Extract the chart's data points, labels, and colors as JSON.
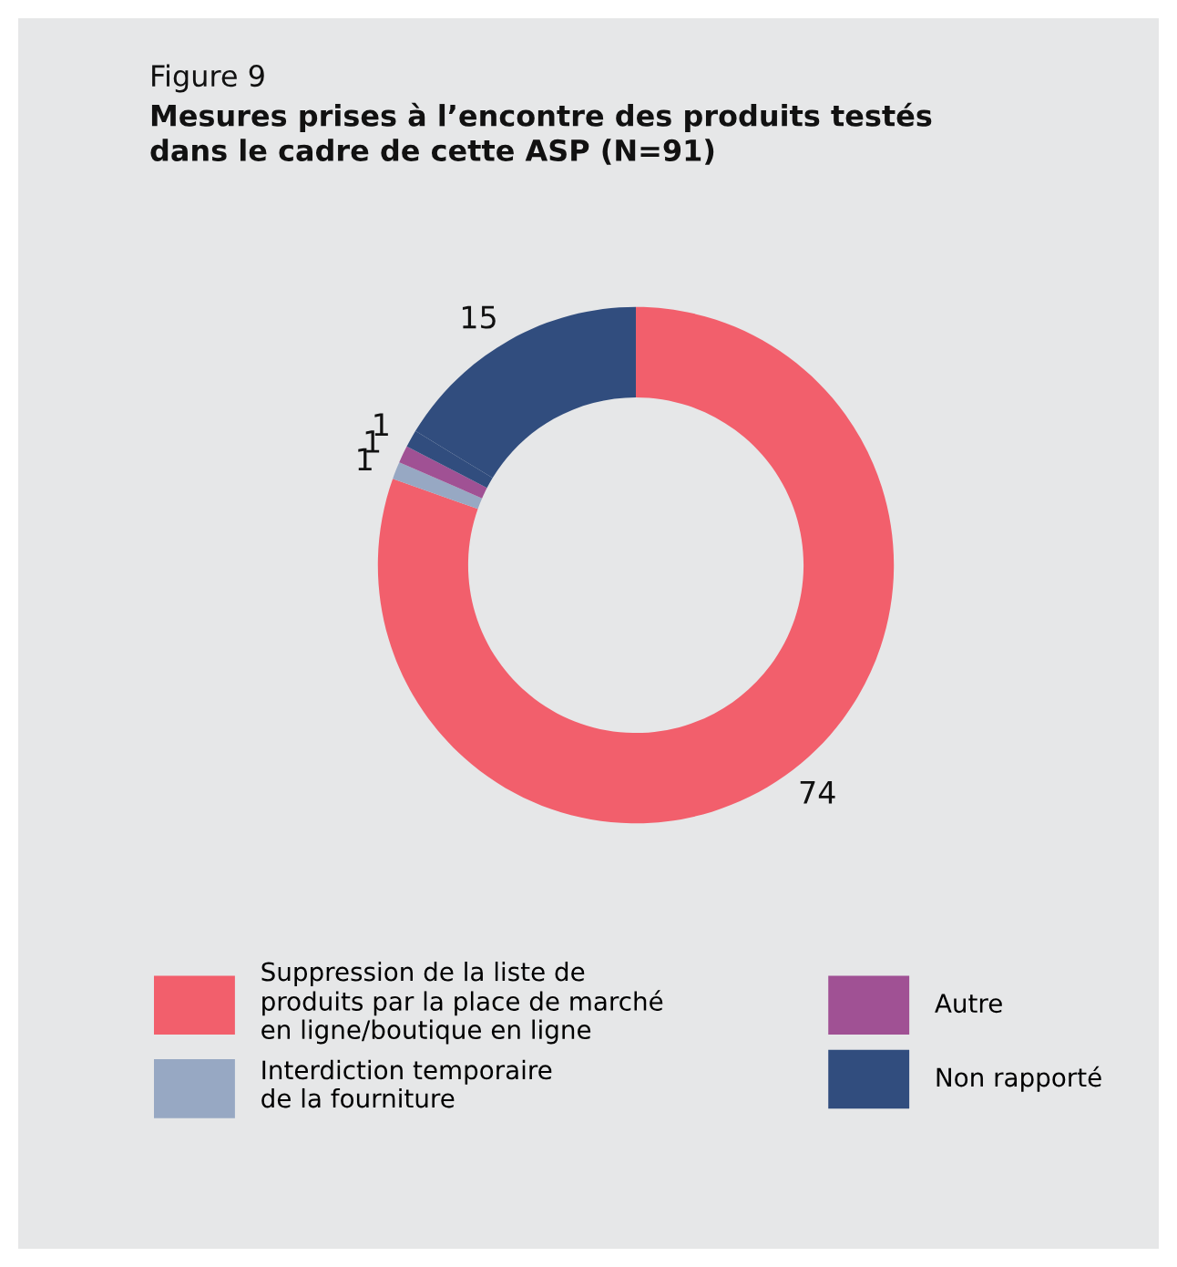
{
  "chart_data": {
    "type": "donut",
    "subtitle": "Figure 9",
    "title": "Mesures prises à l’encontre des produits testés\ndans le cadre de cette ASP (N=91)",
    "categories": [
      "Suppression de la liste de\nproduits par la place de marché\nen ligne/boutique en ligne",
      "Interdiction temporaire\nde la fourniture",
      "Autre",
      null,
      "Non rapporté"
    ],
    "values": [
      74,
      1,
      1,
      1,
      15
    ],
    "colors": [
      "#f25f6c",
      "#97a8c3",
      "#a05194",
      "#314d7e",
      "#314d7e"
    ],
    "data_labels": true,
    "legend": "bottom"
  }
}
